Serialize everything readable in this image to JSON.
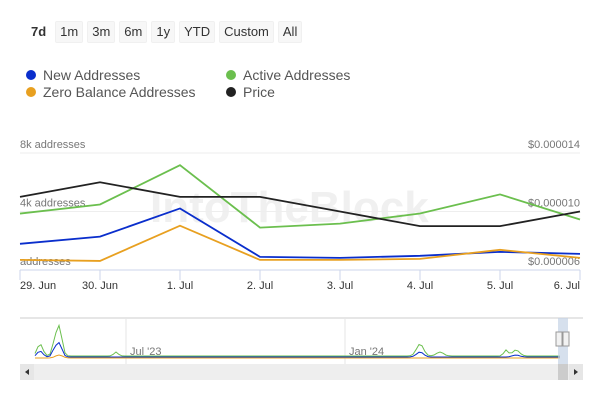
{
  "range_buttons": [
    "7d",
    "1m",
    "3m",
    "6m",
    "1y",
    "YTD",
    "Custom",
    "All"
  ],
  "active_range": "7d",
  "legend": [
    {
      "label": "New Addresses",
      "color": "#0a2ecc"
    },
    {
      "label": "Active Addresses",
      "color": "#6bbf4e"
    },
    {
      "label": "Zero Balance Addresses",
      "color": "#e8a020"
    },
    {
      "label": "Price",
      "color": "#222222"
    }
  ],
  "watermark": "IntoTheBlock",
  "chart_data": {
    "type": "line",
    "x": [
      "29. Jun",
      "30. Jun",
      "1. Jul",
      "2. Jul",
      "3. Jul",
      "4. Jul",
      "5. Jul",
      "6. Jul"
    ],
    "left_axis": {
      "ticks": [
        "8k addresses",
        "4k addresses",
        "addresses"
      ],
      "ylim": [
        0,
        8000
      ]
    },
    "right_axis": {
      "ticks": [
        "$0.000014",
        "$0.000010",
        "$0.000006"
      ],
      "ylim": [
        6e-06,
        1.4e-05
      ]
    },
    "grid": true,
    "legend_position": "top-left",
    "series": [
      {
        "name": "New Addresses",
        "axis": "left",
        "color": "#0a2ecc",
        "values": [
          1790,
          2280,
          4210,
          900,
          830,
          970,
          1240,
          1100
        ]
      },
      {
        "name": "Active Addresses",
        "axis": "left",
        "color": "#6bbf4e",
        "values": [
          3860,
          4480,
          7170,
          2900,
          3170,
          3860,
          5170,
          3450
        ]
      },
      {
        "name": "Zero Balance Addresses",
        "axis": "left",
        "color": "#e8a020",
        "values": [
          690,
          620,
          3030,
          690,
          690,
          760,
          1380,
          830
        ]
      },
      {
        "name": "Price",
        "axis": "right",
        "color": "#222222",
        "values": [
          1.1e-05,
          1.2e-05,
          1.1e-05,
          1.1e-05,
          1e-05,
          9e-06,
          9e-06,
          1e-05
        ]
      }
    ],
    "navigator": {
      "labels": [
        "Jul '23",
        "Jan '24"
      ]
    }
  }
}
